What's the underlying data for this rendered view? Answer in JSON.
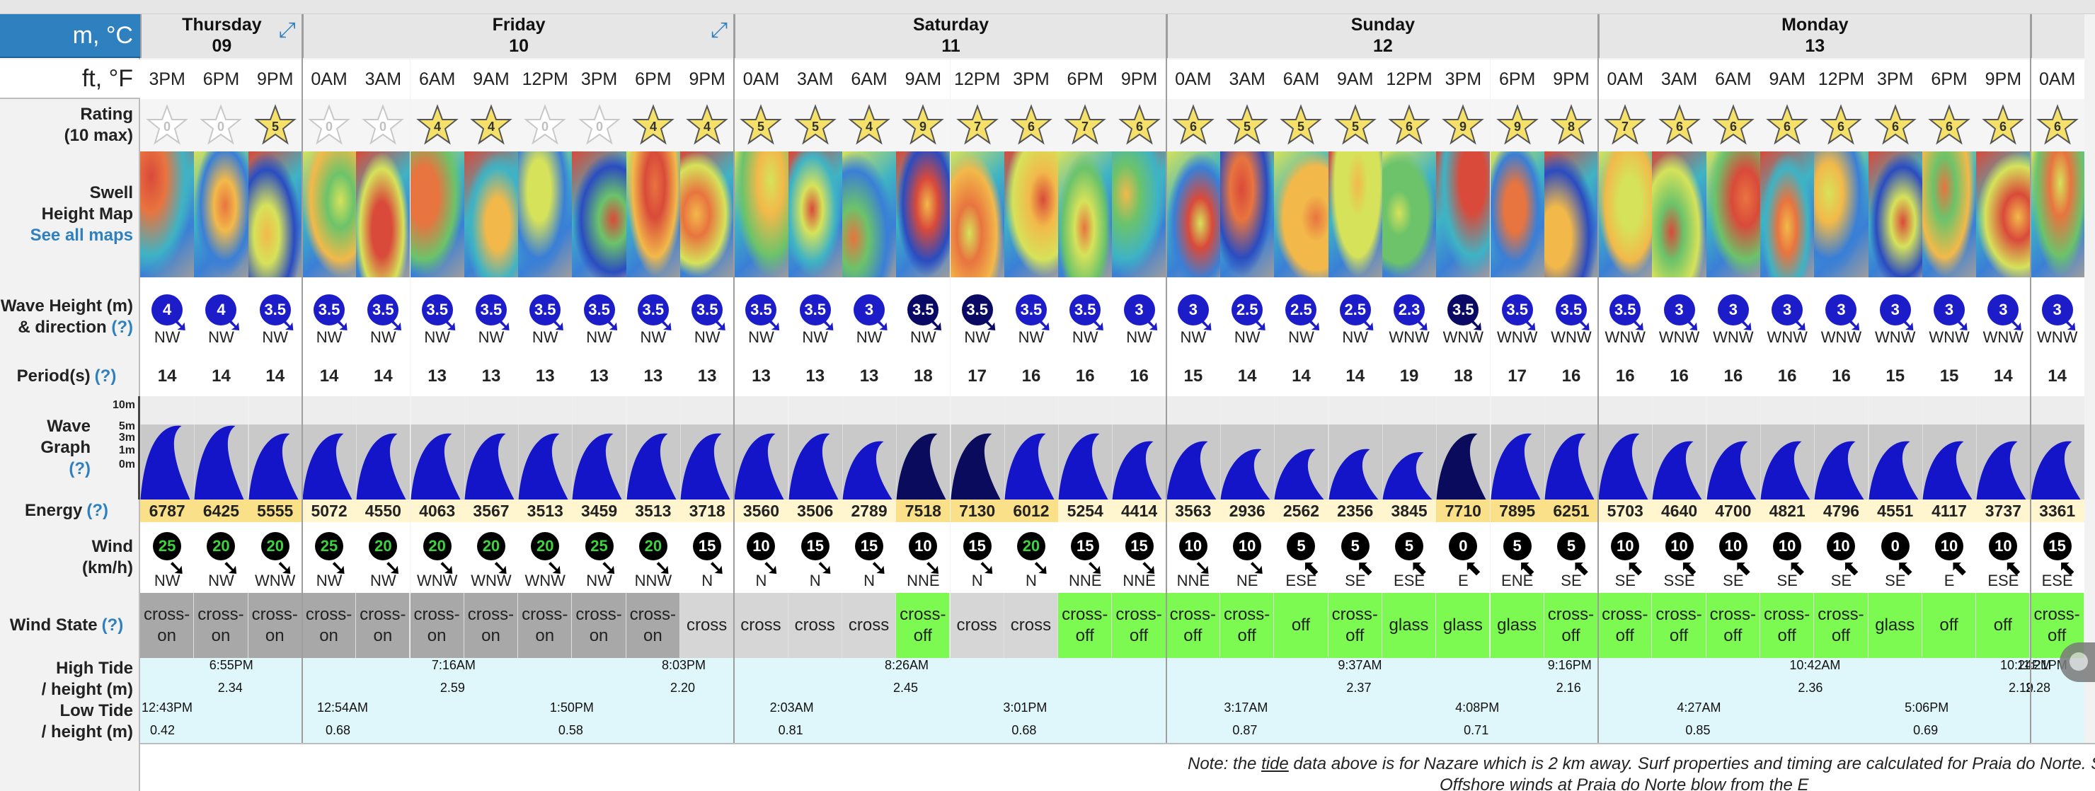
{
  "units": {
    "metric": "m, °C",
    "imperial": "ft, °F"
  },
  "row_labels": {
    "rating": [
      "Rating",
      "(10 max)"
    ],
    "swell_map": [
      "Swell",
      "Height Map"
    ],
    "see_all_maps": "See all maps",
    "wave_height": [
      "Wave Height (m)",
      "& direction"
    ],
    "period": "Period(s)",
    "wave_graph": [
      "Wave",
      "Graph"
    ],
    "energy": "Energy",
    "wind": [
      "Wind",
      "(km/h)"
    ],
    "wind_state": "Wind State",
    "high_tide": [
      "High Tide",
      "/ height (m)"
    ],
    "low_tide": [
      "Low Tide",
      "/ height (m)"
    ],
    "help": "(?)"
  },
  "graph_scale": [
    "10m",
    "5m",
    "3m",
    "1m",
    "0m"
  ],
  "days": [
    {
      "name": "Thursday",
      "date": "09",
      "cols": 3,
      "expand": true
    },
    {
      "name": "Friday",
      "date": "10",
      "cols": 8,
      "expand": true
    },
    {
      "name": "Saturday",
      "date": "11",
      "cols": 8,
      "expand": false
    },
    {
      "name": "Sunday",
      "date": "12",
      "cols": 8,
      "expand": false
    },
    {
      "name": "Monday",
      "date": "13",
      "cols": 8,
      "expand": false
    },
    {
      "name": "",
      "date": "",
      "cols": 1,
      "expand": false
    }
  ],
  "columns": [
    {
      "time": "3PM",
      "rating": 0,
      "wave": "4",
      "wave_dir": "NW",
      "wave_dark": false,
      "period": "14",
      "energy": "6787",
      "energy_hl": true,
      "wind": "25",
      "wind_color": "#3ed23e",
      "wind_dir": "NW",
      "state": "cross-on",
      "state_bg": "#a8a8a8"
    },
    {
      "time": "6PM",
      "rating": 0,
      "wave": "4",
      "wave_dir": "NW",
      "wave_dark": false,
      "period": "14",
      "energy": "6425",
      "energy_hl": true,
      "wind": "20",
      "wind_color": "#3ed23e",
      "wind_dir": "NW",
      "state": "cross-on",
      "state_bg": "#a8a8a8"
    },
    {
      "time": "9PM",
      "rating": 5,
      "wave": "3.5",
      "wave_dir": "NW",
      "wave_dark": false,
      "period": "14",
      "energy": "5555",
      "energy_hl": true,
      "wind": "20",
      "wind_color": "#3ed23e",
      "wind_dir": "WNW",
      "state": "cross-on",
      "state_bg": "#a8a8a8"
    },
    {
      "time": "0AM",
      "rating": 0,
      "wave": "3.5",
      "wave_dir": "NW",
      "wave_dark": false,
      "period": "14",
      "energy": "5072",
      "energy_hl": false,
      "wind": "25",
      "wind_color": "#3ed23e",
      "wind_dir": "NW",
      "state": "cross-on",
      "state_bg": "#a8a8a8"
    },
    {
      "time": "3AM",
      "rating": 0,
      "wave": "3.5",
      "wave_dir": "NW",
      "wave_dark": false,
      "period": "14",
      "energy": "4550",
      "energy_hl": false,
      "wind": "20",
      "wind_color": "#3ed23e",
      "wind_dir": "NW",
      "state": "cross-on",
      "state_bg": "#a8a8a8"
    },
    {
      "time": "6AM",
      "rating": 4,
      "wave": "3.5",
      "wave_dir": "NW",
      "wave_dark": false,
      "period": "13",
      "energy": "4063",
      "energy_hl": false,
      "wind": "20",
      "wind_color": "#3ed23e",
      "wind_dir": "WNW",
      "state": "cross-on",
      "state_bg": "#a8a8a8"
    },
    {
      "time": "9AM",
      "rating": 4,
      "wave": "3.5",
      "wave_dir": "NW",
      "wave_dark": false,
      "period": "13",
      "energy": "3567",
      "energy_hl": false,
      "wind": "20",
      "wind_color": "#3ed23e",
      "wind_dir": "WNW",
      "state": "cross-on",
      "state_bg": "#a8a8a8"
    },
    {
      "time": "12PM",
      "rating": 0,
      "wave": "3.5",
      "wave_dir": "NW",
      "wave_dark": false,
      "period": "13",
      "energy": "3513",
      "energy_hl": false,
      "wind": "20",
      "wind_color": "#3ed23e",
      "wind_dir": "WNW",
      "state": "cross-on",
      "state_bg": "#a8a8a8"
    },
    {
      "time": "3PM",
      "rating": 0,
      "wave": "3.5",
      "wave_dir": "NW",
      "wave_dark": false,
      "period": "13",
      "energy": "3459",
      "energy_hl": false,
      "wind": "25",
      "wind_color": "#3ed23e",
      "wind_dir": "NW",
      "state": "cross-on",
      "state_bg": "#a8a8a8"
    },
    {
      "time": "6PM",
      "rating": 4,
      "wave": "3.5",
      "wave_dir": "NW",
      "wave_dark": false,
      "period": "13",
      "energy": "3513",
      "energy_hl": false,
      "wind": "20",
      "wind_color": "#3ed23e",
      "wind_dir": "NNW",
      "state": "cross-on",
      "state_bg": "#a8a8a8"
    },
    {
      "time": "9PM",
      "rating": 4,
      "wave": "3.5",
      "wave_dir": "NW",
      "wave_dark": false,
      "period": "13",
      "energy": "3718",
      "energy_hl": false,
      "wind": "15",
      "wind_color": "#ffffff",
      "wind_dir": "N",
      "state": "cross",
      "state_bg": "#d6d6d6"
    },
    {
      "time": "0AM",
      "rating": 5,
      "wave": "3.5",
      "wave_dir": "NW",
      "wave_dark": false,
      "period": "13",
      "energy": "3560",
      "energy_hl": false,
      "wind": "10",
      "wind_color": "#ffffff",
      "wind_dir": "N",
      "state": "cross",
      "state_bg": "#d6d6d6"
    },
    {
      "time": "3AM",
      "rating": 5,
      "wave": "3.5",
      "wave_dir": "NW",
      "wave_dark": false,
      "period": "13",
      "energy": "3506",
      "energy_hl": false,
      "wind": "15",
      "wind_color": "#ffffff",
      "wind_dir": "N",
      "state": "cross",
      "state_bg": "#d6d6d6"
    },
    {
      "time": "6AM",
      "rating": 4,
      "wave": "3",
      "wave_dir": "NW",
      "wave_dark": false,
      "period": "13",
      "energy": "2789",
      "energy_hl": false,
      "wind": "15",
      "wind_color": "#ffffff",
      "wind_dir": "N",
      "state": "cross",
      "state_bg": "#d6d6d6"
    },
    {
      "time": "9AM",
      "rating": 9,
      "wave": "3.5",
      "wave_dir": "NW",
      "wave_dark": true,
      "period": "18",
      "energy": "7518",
      "energy_hl": true,
      "wind": "10",
      "wind_color": "#ffffff",
      "wind_dir": "NNE",
      "state": "cross-off",
      "state_bg": "#7dfa52"
    },
    {
      "time": "12PM",
      "rating": 7,
      "wave": "3.5",
      "wave_dir": "NW",
      "wave_dark": true,
      "period": "17",
      "energy": "7130",
      "energy_hl": true,
      "wind": "15",
      "wind_color": "#ffffff",
      "wind_dir": "N",
      "state": "cross",
      "state_bg": "#d6d6d6"
    },
    {
      "time": "3PM",
      "rating": 6,
      "wave": "3.5",
      "wave_dir": "NW",
      "wave_dark": false,
      "period": "16",
      "energy": "6012",
      "energy_hl": true,
      "wind": "20",
      "wind_color": "#3ed23e",
      "wind_dir": "N",
      "state": "cross",
      "state_bg": "#d6d6d6"
    },
    {
      "time": "6PM",
      "rating": 7,
      "wave": "3.5",
      "wave_dir": "NW",
      "wave_dark": false,
      "period": "16",
      "energy": "5254",
      "energy_hl": false,
      "wind": "15",
      "wind_color": "#ffffff",
      "wind_dir": "NNE",
      "state": "cross-off",
      "state_bg": "#7dfa52"
    },
    {
      "time": "9PM",
      "rating": 6,
      "wave": "3",
      "wave_dir": "NW",
      "wave_dark": false,
      "period": "16",
      "energy": "4414",
      "energy_hl": false,
      "wind": "15",
      "wind_color": "#ffffff",
      "wind_dir": "NNE",
      "state": "cross-off",
      "state_bg": "#7dfa52"
    },
    {
      "time": "0AM",
      "rating": 6,
      "wave": "3",
      "wave_dir": "NW",
      "wave_dark": false,
      "period": "15",
      "energy": "3563",
      "energy_hl": false,
      "wind": "10",
      "wind_color": "#ffffff",
      "wind_dir": "NNE",
      "state": "cross-off",
      "state_bg": "#7dfa52"
    },
    {
      "time": "3AM",
      "rating": 5,
      "wave": "2.5",
      "wave_dir": "NW",
      "wave_dark": false,
      "period": "14",
      "energy": "2936",
      "energy_hl": false,
      "wind": "10",
      "wind_color": "#ffffff",
      "wind_dir": "NE",
      "state": "cross-off",
      "state_bg": "#7dfa52"
    },
    {
      "time": "6AM",
      "rating": 5,
      "wave": "2.5",
      "wave_dir": "NW",
      "wave_dark": false,
      "period": "14",
      "energy": "2562",
      "energy_hl": false,
      "wind": "5",
      "wind_color": "#ffffff",
      "wind_dir": "ESE",
      "state": "off",
      "state_bg": "#7dfa52"
    },
    {
      "time": "9AM",
      "rating": 5,
      "wave": "2.5",
      "wave_dir": "NW",
      "wave_dark": false,
      "period": "14",
      "energy": "2356",
      "energy_hl": false,
      "wind": "5",
      "wind_color": "#ffffff",
      "wind_dir": "SE",
      "state": "cross-off",
      "state_bg": "#7dfa52"
    },
    {
      "time": "12PM",
      "rating": 6,
      "wave": "2.3",
      "wave_dir": "WNW",
      "wave_dark": false,
      "period": "19",
      "energy": "3845",
      "energy_hl": false,
      "wind": "5",
      "wind_color": "#ffffff",
      "wind_dir": "ESE",
      "state": "glass",
      "state_bg": "#7dfa52"
    },
    {
      "time": "3PM",
      "rating": 9,
      "wave": "3.5",
      "wave_dir": "WNW",
      "wave_dark": true,
      "period": "18",
      "energy": "7710",
      "energy_hl": true,
      "wind": "0",
      "wind_color": "#ffffff",
      "wind_dir": "E",
      "state": "glass",
      "state_bg": "#7dfa52"
    },
    {
      "time": "6PM",
      "rating": 9,
      "wave": "3.5",
      "wave_dir": "WNW",
      "wave_dark": false,
      "period": "17",
      "energy": "7895",
      "energy_hl": true,
      "wind": "5",
      "wind_color": "#ffffff",
      "wind_dir": "ENE",
      "state": "glass",
      "state_bg": "#7dfa52"
    },
    {
      "time": "9PM",
      "rating": 8,
      "wave": "3.5",
      "wave_dir": "WNW",
      "wave_dark": false,
      "period": "16",
      "energy": "6251",
      "energy_hl": true,
      "wind": "5",
      "wind_color": "#ffffff",
      "wind_dir": "SE",
      "state": "cross-off",
      "state_bg": "#7dfa52"
    },
    {
      "time": "0AM",
      "rating": 7,
      "wave": "3.5",
      "wave_dir": "WNW",
      "wave_dark": false,
      "period": "16",
      "energy": "5703",
      "energy_hl": false,
      "wind": "10",
      "wind_color": "#ffffff",
      "wind_dir": "SE",
      "state": "cross-off",
      "state_bg": "#7dfa52"
    },
    {
      "time": "3AM",
      "rating": 6,
      "wave": "3",
      "wave_dir": "WNW",
      "wave_dark": false,
      "period": "16",
      "energy": "4640",
      "energy_hl": false,
      "wind": "10",
      "wind_color": "#ffffff",
      "wind_dir": "SSE",
      "state": "cross-off",
      "state_bg": "#7dfa52"
    },
    {
      "time": "6AM",
      "rating": 6,
      "wave": "3",
      "wave_dir": "WNW",
      "wave_dark": false,
      "period": "16",
      "energy": "4700",
      "energy_hl": false,
      "wind": "10",
      "wind_color": "#ffffff",
      "wind_dir": "SE",
      "state": "cross-off",
      "state_bg": "#7dfa52"
    },
    {
      "time": "9AM",
      "rating": 6,
      "wave": "3",
      "wave_dir": "WNW",
      "wave_dark": false,
      "period": "16",
      "energy": "4821",
      "energy_hl": false,
      "wind": "10",
      "wind_color": "#ffffff",
      "wind_dir": "SE",
      "state": "cross-off",
      "state_bg": "#7dfa52"
    },
    {
      "time": "12PM",
      "rating": 6,
      "wave": "3",
      "wave_dir": "WNW",
      "wave_dark": false,
      "period": "16",
      "energy": "4796",
      "energy_hl": false,
      "wind": "10",
      "wind_color": "#ffffff",
      "wind_dir": "SE",
      "state": "cross-off",
      "state_bg": "#7dfa52"
    },
    {
      "time": "3PM",
      "rating": 6,
      "wave": "3",
      "wave_dir": "WNW",
      "wave_dark": false,
      "period": "15",
      "energy": "4551",
      "energy_hl": false,
      "wind": "0",
      "wind_color": "#ffffff",
      "wind_dir": "SE",
      "state": "glass",
      "state_bg": "#7dfa52"
    },
    {
      "time": "6PM",
      "rating": 6,
      "wave": "3",
      "wave_dir": "WNW",
      "wave_dark": false,
      "period": "15",
      "energy": "4117",
      "energy_hl": false,
      "wind": "10",
      "wind_color": "#ffffff",
      "wind_dir": "E",
      "state": "off",
      "state_bg": "#7dfa52"
    },
    {
      "time": "9PM",
      "rating": 6,
      "wave": "3",
      "wave_dir": "WNW",
      "wave_dark": false,
      "period": "14",
      "energy": "3737",
      "energy_hl": false,
      "wind": "10",
      "wind_color": "#ffffff",
      "wind_dir": "ESE",
      "state": "off",
      "state_bg": "#7dfa52"
    },
    {
      "time": "0AM",
      "rating": 6,
      "wave": "3",
      "wave_dir": "WNW",
      "wave_dark": false,
      "period": "14",
      "energy": "3361",
      "energy_hl": false,
      "wind": "15",
      "wind_color": "#ffffff",
      "wind_dir": "ESE",
      "state": "cross-off",
      "state_bg": "#7dfa52"
    }
  ],
  "tides": {
    "high": [
      {
        "day": 0,
        "time": "6:55PM",
        "height": "2.34"
      },
      {
        "day": 1,
        "time": "7:16AM",
        "height": "2.59"
      },
      {
        "day": 1,
        "time": "8:03PM",
        "height": "2.20"
      },
      {
        "day": 2,
        "time": "8:26AM",
        "height": "2.45"
      },
      {
        "day": 3,
        "time": "9:16PM",
        "height": "2.16"
      },
      {
        "day": 3,
        "time": "9:37AM",
        "height": "2.37"
      },
      {
        "day": 4,
        "time": "10:24PM",
        "height": "2.19"
      },
      {
        "day": 4,
        "time": "10:42AM",
        "height": "2.36"
      },
      {
        "day": 5,
        "time": "11:21PM",
        "height": "2.28"
      }
    ],
    "low": [
      {
        "day": 0,
        "time": "12:43PM",
        "height": "0.42"
      },
      {
        "day": 1,
        "time": "12:54AM",
        "height": "0.68"
      },
      {
        "day": 1,
        "time": "1:50PM",
        "height": "0.58"
      },
      {
        "day": 2,
        "time": "2:03AM",
        "height": "0.81"
      },
      {
        "day": 2,
        "time": "3:01PM",
        "height": "0.68"
      },
      {
        "day": 3,
        "time": "3:17AM",
        "height": "0.87"
      },
      {
        "day": 3,
        "time": "4:08PM",
        "height": "0.71"
      },
      {
        "day": 4,
        "time": "4:27AM",
        "height": "0.85"
      },
      {
        "day": 4,
        "time": "5:06PM",
        "height": "0.69"
      }
    ]
  },
  "note": {
    "prefix": "Note: the ",
    "link": "tide",
    "suffix": " data above is for Nazare which is 2 km away. Surf properties and timing are calculated for Praia do Norte. S",
    "line2": "Offshore winds at Praia do Norte blow from the E"
  }
}
